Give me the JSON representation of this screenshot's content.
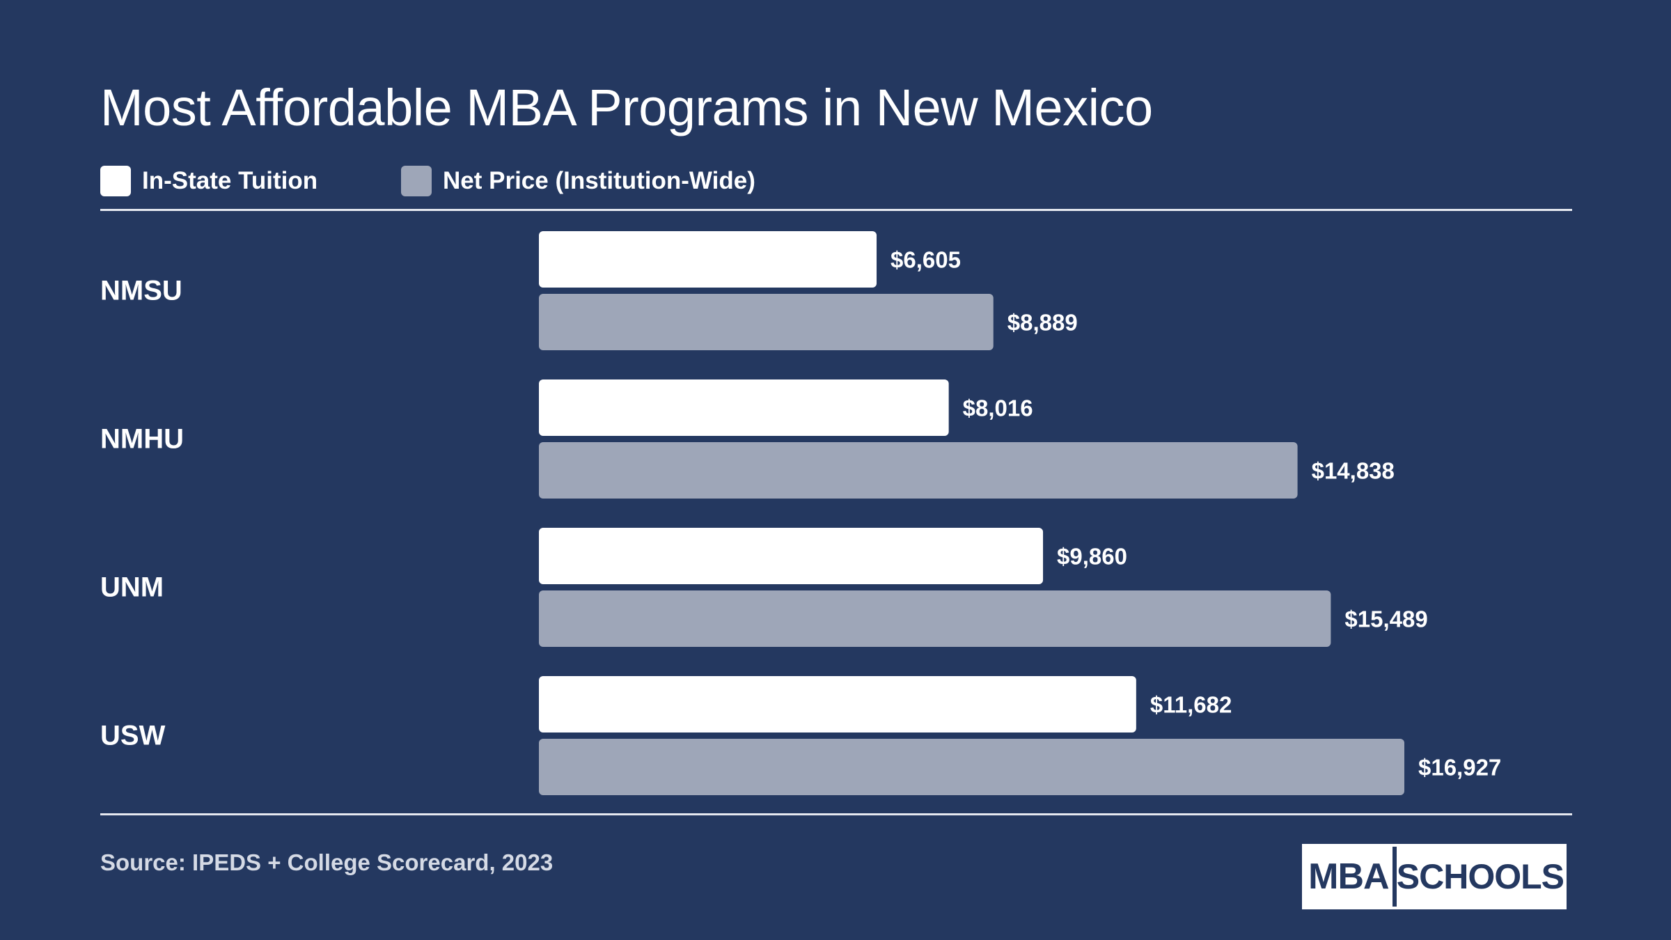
{
  "colors": {
    "background": "#243860",
    "series_in_state": "#ffffff",
    "series_net_price": "#9ea6b8",
    "text": "#ffffff"
  },
  "chart_data": {
    "type": "bar",
    "orientation": "horizontal",
    "title": "Most Affordable MBA Programs in New Mexico",
    "categories": [
      "NMSU",
      "NMHU",
      "UNM",
      "USW"
    ],
    "series": [
      {
        "name": "In-State Tuition",
        "values": [
          6605,
          8016,
          9860,
          11682
        ],
        "labels": [
          "$6,605",
          "$8,016",
          "$9,860",
          "$11,682"
        ]
      },
      {
        "name": "Net Price (Institution-Wide)",
        "values": [
          8889,
          14838,
          15489,
          16927
        ],
        "labels": [
          "$8,889",
          "$14,838",
          "$15,489",
          "$16,927"
        ]
      }
    ],
    "xlim": [
      0,
      16927
    ],
    "grid": false,
    "legend": "top-left"
  },
  "source": "Source: IPEDS + College Scorecard, 2023",
  "logo": {
    "left": "MBA",
    "right": "SCHOOLS"
  }
}
